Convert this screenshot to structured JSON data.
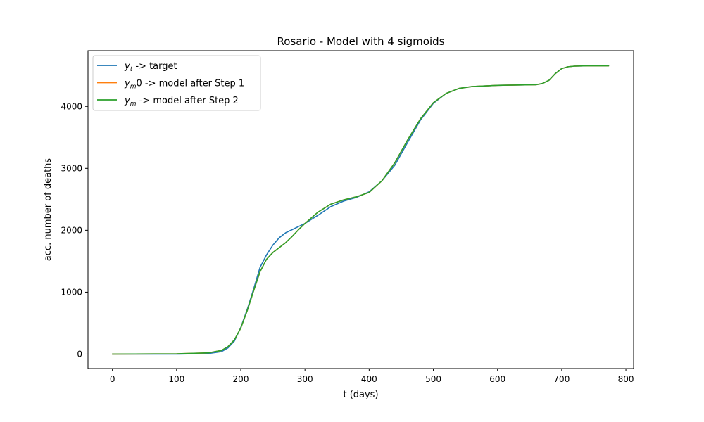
{
  "chart_data": {
    "type": "line",
    "title": "Rosario - Model with 4 sigmoids",
    "xlabel": "t (days)",
    "ylabel": "acc. number of deaths",
    "xlim": [
      -38,
      812
    ],
    "ylim": [
      -233,
      4900
    ],
    "x_ticks": [
      0,
      100,
      200,
      300,
      400,
      500,
      600,
      700,
      800
    ],
    "y_ticks": [
      0,
      1000,
      2000,
      3000,
      4000
    ],
    "grid": false,
    "legend_position": "upper-left",
    "series": [
      {
        "name": "y_t ->  target",
        "legend_math": "y",
        "legend_sub": "t",
        "legend_rest": " ->  target",
        "color": "#1f77b4",
        "x": [
          0,
          100,
          150,
          170,
          180,
          190,
          200,
          210,
          220,
          230,
          240,
          250,
          260,
          270,
          280,
          290,
          300,
          320,
          340,
          360,
          380,
          400,
          420,
          440,
          460,
          480,
          500,
          520,
          540,
          560,
          600,
          660,
          670,
          680,
          690,
          700,
          710,
          720,
          740,
          773
        ],
        "y": [
          0,
          0,
          10,
          40,
          100,
          210,
          430,
          720,
          1050,
          1400,
          1600,
          1760,
          1880,
          1960,
          2010,
          2060,
          2110,
          2240,
          2380,
          2470,
          2530,
          2620,
          2800,
          3050,
          3420,
          3780,
          4050,
          4210,
          4290,
          4320,
          4340,
          4350,
          4370,
          4420,
          4530,
          4610,
          4640,
          4650,
          4655,
          4655
        ]
      },
      {
        "name": "y_m0 ->  model after Step 1",
        "legend_math": "y",
        "legend_sub": "m",
        "legend_rest": "0 ->  model after Step 1",
        "color": "#ff7f0e",
        "x": [
          0,
          100,
          150,
          170,
          180,
          190,
          200,
          210,
          220,
          230,
          240,
          250,
          260,
          270,
          280,
          290,
          300,
          320,
          340,
          360,
          380,
          400,
          420,
          440,
          460,
          480,
          500,
          520,
          540,
          560,
          600,
          660,
          670,
          680,
          690,
          700,
          710,
          720,
          740,
          773
        ],
        "y": [
          0,
          5,
          20,
          60,
          120,
          230,
          420,
          700,
          1020,
          1330,
          1530,
          1640,
          1720,
          1800,
          1900,
          2010,
          2110,
          2290,
          2420,
          2490,
          2540,
          2610,
          2800,
          3090,
          3460,
          3800,
          4060,
          4210,
          4290,
          4320,
          4340,
          4350,
          4370,
          4420,
          4530,
          4610,
          4640,
          4650,
          4655,
          4655
        ]
      },
      {
        "name": "y_m ->  model after Step 2",
        "legend_math": "y",
        "legend_sub": "m",
        "legend_rest": " ->  model after Step 2",
        "color": "#2ca02c",
        "x": [
          0,
          100,
          150,
          170,
          180,
          190,
          200,
          210,
          220,
          230,
          240,
          250,
          260,
          270,
          280,
          290,
          300,
          320,
          340,
          360,
          380,
          400,
          420,
          440,
          460,
          480,
          500,
          520,
          540,
          560,
          600,
          660,
          670,
          680,
          690,
          700,
          710,
          720,
          740,
          773
        ],
        "y": [
          0,
          5,
          20,
          60,
          120,
          230,
          420,
          700,
          1020,
          1330,
          1530,
          1640,
          1720,
          1800,
          1900,
          2010,
          2110,
          2290,
          2420,
          2490,
          2540,
          2610,
          2800,
          3090,
          3460,
          3800,
          4060,
          4210,
          4290,
          4320,
          4340,
          4350,
          4370,
          4420,
          4530,
          4610,
          4640,
          4650,
          4655,
          4655
        ]
      }
    ]
  }
}
